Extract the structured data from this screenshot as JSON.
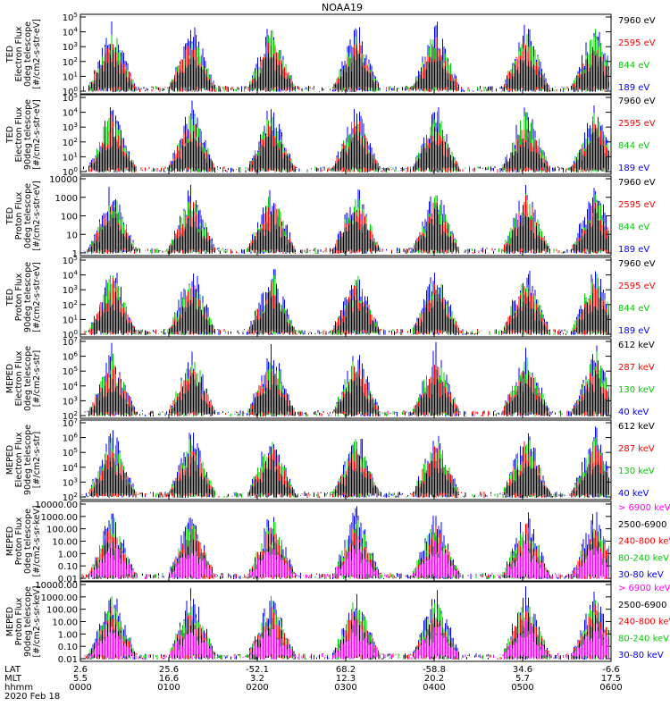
{
  "figure": {
    "title": "NOAA19",
    "date": "2020 Feb 18"
  },
  "chart_data": [
    {
      "type": "line",
      "ylabel": [
        "TED",
        "Electron Flux",
        "0deg telescope",
        "[#/cm2-s-str-eV]"
      ],
      "ytick_labels": [
        "10^5",
        "10^4",
        "10^3",
        "10^2",
        "10^1",
        "10^0"
      ],
      "ylim": [
        1,
        100000
      ],
      "log": true,
      "series": [
        {
          "name": "7960 eV",
          "color": "#000000"
        },
        {
          "name": "2595 eV",
          "color": "#ff0000"
        },
        {
          "name": "844 eV",
          "color": "#00cc00"
        },
        {
          "name": "189 eV",
          "color": "#0000ff"
        }
      ]
    },
    {
      "type": "line",
      "ylabel": [
        "TED",
        "Electron Flux",
        "90deg telescope",
        "[#/cm2-s-str-eV]"
      ],
      "ytick_labels": [
        "10^5",
        "10^4",
        "10^3",
        "10^2",
        "10^1",
        "10^0"
      ],
      "ylim": [
        1,
        100000
      ],
      "log": true,
      "series": [
        {
          "name": "7960 eV",
          "color": "#000000"
        },
        {
          "name": "2595 eV",
          "color": "#ff0000"
        },
        {
          "name": "844 eV",
          "color": "#00cc00"
        },
        {
          "name": "189 eV",
          "color": "#0000ff"
        }
      ]
    },
    {
      "type": "line",
      "ylabel": [
        "TED",
        "Proton Flux",
        "0deg telescope",
        "[#/cm2-s-str-eV]"
      ],
      "ytick_labels": [
        "10000",
        "1000",
        "100",
        "10",
        "1"
      ],
      "ylim": [
        1,
        10000
      ],
      "log": true,
      "series": [
        {
          "name": "7960 eV",
          "color": "#000000"
        },
        {
          "name": "2595 eV",
          "color": "#ff0000"
        },
        {
          "name": "844 eV",
          "color": "#00cc00"
        },
        {
          "name": "189 eV",
          "color": "#0000ff"
        }
      ]
    },
    {
      "type": "line",
      "ylabel": [
        "TED",
        "Proton Flux",
        "90deg telescope",
        "[#/cm2-s-str-eV]"
      ],
      "ytick_labels": [
        "10^5",
        "10^4",
        "10^3",
        "10^2",
        "10^1",
        "10^0"
      ],
      "ylim": [
        1,
        100000
      ],
      "log": true,
      "series": [
        {
          "name": "7960 eV",
          "color": "#000000"
        },
        {
          "name": "2595 eV",
          "color": "#ff0000"
        },
        {
          "name": "844 eV",
          "color": "#00cc00"
        },
        {
          "name": "189 eV",
          "color": "#0000ff"
        }
      ]
    },
    {
      "type": "line",
      "ylabel": [
        "MEPED",
        "Electron Flux",
        "0deg telescope",
        "[#/cm2-s-str]"
      ],
      "ytick_labels": [
        "10^7",
        "10^6",
        "10^5",
        "10^4",
        "10^3",
        "10^2"
      ],
      "ylim": [
        100,
        10000000
      ],
      "log": true,
      "series": [
        {
          "name": "612 keV",
          "color": "#000000"
        },
        {
          "name": "287 keV",
          "color": "#ff0000"
        },
        {
          "name": "130 keV",
          "color": "#00cc00"
        },
        {
          "name": "40 keV",
          "color": "#0000ff"
        }
      ]
    },
    {
      "type": "line",
      "ylabel": [
        "MEPED",
        "Electron Flux",
        "90deg telescope",
        "[#/cm2-s-str]"
      ],
      "ytick_labels": [
        "10^7",
        "10^6",
        "10^5",
        "10^4",
        "10^3",
        "10^2"
      ],
      "ylim": [
        100,
        10000000
      ],
      "log": true,
      "series": [
        {
          "name": "612 keV",
          "color": "#000000"
        },
        {
          "name": "287 keV",
          "color": "#ff0000"
        },
        {
          "name": "130 keV",
          "color": "#00cc00"
        },
        {
          "name": "40 keV",
          "color": "#0000ff"
        }
      ]
    },
    {
      "type": "line",
      "ylabel": [
        "MEPED",
        "Proton Flux",
        "0deg telescope",
        "[#/cm2-s-sr-keV]"
      ],
      "ytick_labels": [
        "10000.00",
        "1000.00",
        "100.00",
        "10.00",
        "1.00",
        "0.10",
        "0.01"
      ],
      "ylim": [
        0.01,
        10000
      ],
      "log": true,
      "series": [
        {
          "name": "> 6900 keV",
          "color": "#ff00ff"
        },
        {
          "name": "2500-6900",
          "color": "#000000"
        },
        {
          "name": "240-800 keV",
          "color": "#ff0000"
        },
        {
          "name": "80-240 keV",
          "color": "#00cc00"
        },
        {
          "name": "30-80 keV",
          "color": "#0000ff"
        }
      ]
    },
    {
      "type": "line",
      "ylabel": [
        "MEPED",
        "Proton Flux",
        "90deg telescope",
        "[#/cm2-s-sr-keV]"
      ],
      "ytick_labels": [
        "10000.00",
        "1000.00",
        "100.00",
        "10.00",
        "1.00",
        "0.10",
        "0.01"
      ],
      "ylim": [
        0.01,
        10000
      ],
      "log": true,
      "series": [
        {
          "name": "> 6900 keV",
          "color": "#ff00ff"
        },
        {
          "name": "2500-6900",
          "color": "#000000"
        },
        {
          "name": "240-800 keV",
          "color": "#ff0000"
        },
        {
          "name": "80-240 keV",
          "color": "#00cc00"
        },
        {
          "name": "30-80 keV",
          "color": "#0000ff"
        }
      ]
    }
  ],
  "x_axis": {
    "row_labels": [
      "LAT",
      "MLT",
      "hhmm"
    ],
    "ticks": [
      {
        "lat": "2.6",
        "mlt": "5.5",
        "hhmm": "0000"
      },
      {
        "lat": "25.6",
        "mlt": "16.6",
        "hhmm": "0100"
      },
      {
        "lat": "-52.1",
        "mlt": "3.2",
        "hhmm": "0200"
      },
      {
        "lat": "68.2",
        "mlt": "12.3",
        "hhmm": "0300"
      },
      {
        "lat": "-58.8",
        "mlt": "20.2",
        "hhmm": "0400"
      },
      {
        "lat": "34.6",
        "mlt": "5.7",
        "hhmm": "0500"
      },
      {
        "lat": "-6.6",
        "mlt": "17.5",
        "hhmm": "0600"
      }
    ]
  }
}
